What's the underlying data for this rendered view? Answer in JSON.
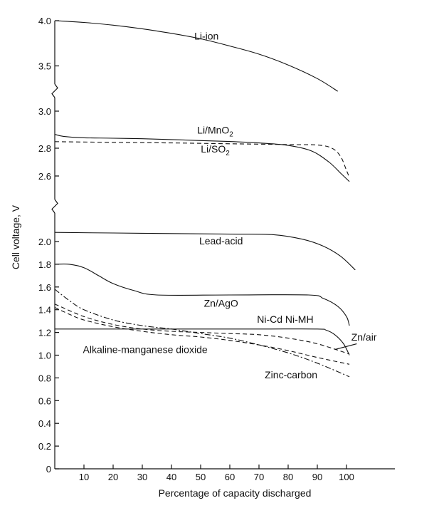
{
  "chart_data": {
    "type": "line",
    "xlabel": "Percentage of capacity discharged",
    "ylabel": "Cell voltage, V",
    "xlim": [
      0,
      110
    ],
    "x_ticks": [
      "10",
      "20",
      "30",
      "40",
      "50",
      "60",
      "70",
      "80",
      "90",
      "100"
    ],
    "y_panels": [
      {
        "range": [
          3.0,
          4.0
        ],
        "ticks": [
          "3.0",
          "3.5",
          "4.0"
        ]
      },
      {
        "range": [
          2.5,
          2.9
        ],
        "ticks": [
          "2.6",
          "2.8"
        ]
      },
      {
        "range": [
          0.0,
          2.2
        ],
        "ticks": [
          "0",
          "0.2",
          "0.4",
          "0.6",
          "0.8",
          "1.0",
          "1.2",
          "1.4",
          "1.6",
          "1.8",
          "2.0"
        ]
      }
    ],
    "series": [
      {
        "name": "Li-ion",
        "panel": 0,
        "style": "solid",
        "points": [
          [
            0,
            4.0
          ],
          [
            10,
            3.98
          ],
          [
            20,
            3.95
          ],
          [
            30,
            3.91
          ],
          [
            40,
            3.86
          ],
          [
            50,
            3.8
          ],
          [
            60,
            3.72
          ],
          [
            70,
            3.63
          ],
          [
            80,
            3.51
          ],
          [
            90,
            3.36
          ],
          [
            97,
            3.22
          ]
        ]
      },
      {
        "name": "Li/MnO₂",
        "panel": 1,
        "style": "solid",
        "points": [
          [
            0,
            2.9
          ],
          [
            3,
            2.885
          ],
          [
            10,
            2.875
          ],
          [
            20,
            2.872
          ],
          [
            30,
            2.868
          ],
          [
            40,
            2.862
          ],
          [
            50,
            2.855
          ],
          [
            60,
            2.848
          ],
          [
            70,
            2.838
          ],
          [
            80,
            2.82
          ],
          [
            88,
            2.78
          ],
          [
            94,
            2.7
          ],
          [
            98,
            2.62
          ],
          [
            101,
            2.56
          ]
        ]
      },
      {
        "name": "Li/SO₂",
        "panel": 1,
        "style": "dashed",
        "points": [
          [
            0,
            2.847
          ],
          [
            20,
            2.842
          ],
          [
            40,
            2.838
          ],
          [
            60,
            2.832
          ],
          [
            80,
            2.826
          ],
          [
            90,
            2.823
          ],
          [
            95,
            2.8
          ],
          [
            98,
            2.74
          ],
          [
            100,
            2.64
          ],
          [
            101,
            2.59
          ]
        ]
      },
      {
        "name": "Lead-acid",
        "panel": 2,
        "style": "solid",
        "points": [
          [
            0,
            2.08
          ],
          [
            20,
            2.075
          ],
          [
            40,
            2.07
          ],
          [
            60,
            2.065
          ],
          [
            75,
            2.06
          ],
          [
            85,
            2.02
          ],
          [
            92,
            1.96
          ],
          [
            98,
            1.87
          ],
          [
            103,
            1.75
          ]
        ]
      },
      {
        "name": "Zn/AgO",
        "panel": 2,
        "style": "solid",
        "points": [
          [
            0,
            1.8
          ],
          [
            5,
            1.8
          ],
          [
            10,
            1.77
          ],
          [
            15,
            1.7
          ],
          [
            20,
            1.63
          ],
          [
            27,
            1.57
          ],
          [
            35,
            1.53
          ],
          [
            60,
            1.53
          ],
          [
            87,
            1.53
          ],
          [
            92,
            1.5
          ],
          [
            97,
            1.43
          ],
          [
            100,
            1.34
          ],
          [
            101,
            1.26
          ]
        ]
      },
      {
        "name": "Ni-Cd Ni-MH",
        "panel": 2,
        "style": "solid",
        "points": [
          [
            0,
            1.23
          ],
          [
            40,
            1.23
          ],
          [
            70,
            1.23
          ],
          [
            90,
            1.23
          ],
          [
            93,
            1.22
          ],
          [
            96,
            1.18
          ],
          [
            99,
            1.1
          ],
          [
            101,
            1.0
          ]
        ]
      },
      {
        "name": "Zn/air",
        "panel": 2,
        "style": "dashed",
        "points": [
          [
            0,
            1.45
          ],
          [
            10,
            1.34
          ],
          [
            20,
            1.27
          ],
          [
            30,
            1.23
          ],
          [
            40,
            1.21
          ],
          [
            50,
            1.2
          ],
          [
            60,
            1.19
          ],
          [
            70,
            1.18
          ],
          [
            80,
            1.15
          ],
          [
            90,
            1.1
          ],
          [
            101,
            1.01
          ]
        ]
      },
      {
        "name": "Alkaline-manganese dioxide",
        "panel": 2,
        "style": "dashed",
        "points": [
          [
            0,
            1.42
          ],
          [
            5,
            1.36
          ],
          [
            10,
            1.31
          ],
          [
            20,
            1.25
          ],
          [
            30,
            1.21
          ],
          [
            40,
            1.18
          ],
          [
            50,
            1.16
          ],
          [
            60,
            1.13
          ],
          [
            70,
            1.09
          ],
          [
            80,
            1.04
          ],
          [
            90,
            0.98
          ],
          [
            101,
            0.92
          ]
        ]
      },
      {
        "name": "Zinc-carbon",
        "panel": 2,
        "style": "dashdot",
        "points": [
          [
            0,
            1.58
          ],
          [
            5,
            1.48
          ],
          [
            10,
            1.4
          ],
          [
            20,
            1.31
          ],
          [
            30,
            1.26
          ],
          [
            40,
            1.23
          ],
          [
            50,
            1.19
          ],
          [
            60,
            1.15
          ],
          [
            70,
            1.09
          ],
          [
            80,
            1.02
          ],
          [
            90,
            0.93
          ],
          [
            101,
            0.81
          ]
        ]
      }
    ],
    "labels": [
      {
        "text": "Li-ion",
        "x": 52,
        "v": 3.79,
        "panel": 0
      },
      {
        "text": "Li/MnO",
        "sub": "2",
        "x": 55,
        "v": 2.905,
        "panel": 1
      },
      {
        "text": "Li/SO",
        "sub": "2",
        "x": 55,
        "v": 2.77,
        "panel": 1
      },
      {
        "text": "Lead-acid",
        "x": 57,
        "v": 1.975,
        "panel": 2
      },
      {
        "text": "Zn/AgO",
        "x": 57,
        "v": 1.425,
        "panel": 2
      },
      {
        "text": "Ni-Cd Ni-MH",
        "x": 79,
        "v": 1.285,
        "panel": 2
      },
      {
        "text": "Zn/air",
        "x": 106,
        "v": 1.13,
        "panel": 2
      },
      {
        "text": "Alkaline-manganese dioxide",
        "x": 31,
        "v": 1.02,
        "panel": 2
      },
      {
        "text": "Zinc-carbon",
        "x": 81,
        "v": 0.795,
        "panel": 2
      }
    ]
  }
}
